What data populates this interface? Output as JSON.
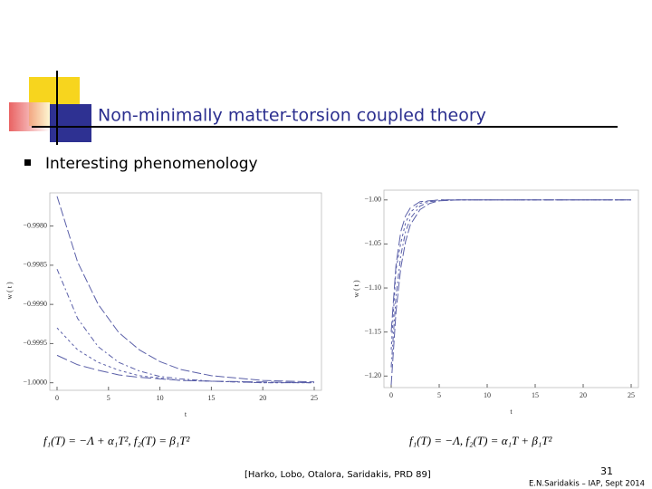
{
  "slide": {
    "title": "Non-minimally matter-torsion coupled theory",
    "bullet": "Interesting phenomenology",
    "formula_left": "f₁(T) = −Λ + α₁T²,   f₂(T) = β₁T²",
    "formula_right": "f₁(T) = −Λ,   f₂(T) = α₁T + β₁T²",
    "citation": "[Harko, Lobo, Otalora, Saridakis, PRD 89]",
    "page_number": "31",
    "footer": "E.N.Saridakis – IAP, Sept 2014"
  },
  "chart_data": [
    {
      "type": "line",
      "x_label": "t",
      "y_label": "w ( t )",
      "x": [
        0,
        2,
        4,
        6,
        8,
        10,
        12,
        15,
        20,
        25
      ],
      "series": [
        {
          "color": "#5a5fa8",
          "dash": "10 3",
          "values": [
            -0.99762,
            -0.99846,
            -0.999,
            -0.99936,
            -0.99958,
            -0.99973,
            -0.99983,
            -0.99991,
            -0.99997,
            -0.99999
          ]
        },
        {
          "color": "#5a5fa8",
          "dash": "6 3 2 3",
          "values": [
            -0.99855,
            -0.99918,
            -0.99954,
            -0.99974,
            -0.99985,
            -0.99992,
            -0.99995,
            -0.99998,
            -1.0,
            -1.0
          ]
        },
        {
          "color": "#5a5fa8",
          "dash": "3 3",
          "values": [
            -0.9993,
            -0.99958,
            -0.99974,
            -0.99984,
            -0.99991,
            -0.99994,
            -0.99997,
            -0.99998,
            -1.0,
            -1.0
          ]
        },
        {
          "color": "#5a5fa8",
          "dash": "12 4",
          "values": [
            -0.99965,
            -0.99977,
            -0.99984,
            -0.9999,
            -0.99993,
            -0.99995,
            -0.99997,
            -0.99998,
            -0.99999,
            -1.0
          ]
        }
      ],
      "xlim": [
        0,
        25
      ],
      "ylim": [
        -1.00005,
        -0.9976
      ],
      "xticks": [
        0,
        5,
        10,
        15,
        20,
        25
      ],
      "yticks": [
        {
          "value": -0.998,
          "label": "−0.9980"
        },
        {
          "value": -0.9985,
          "label": "−0.9985"
        },
        {
          "value": -0.999,
          "label": "−0.9990"
        },
        {
          "value": -0.9995,
          "label": "−0.9995"
        },
        {
          "value": -1.0,
          "label": "−1.0000"
        }
      ]
    },
    {
      "type": "line",
      "x_label": "t",
      "y_label": "w ( t )",
      "x": [
        0,
        0.5,
        1,
        1.5,
        2,
        3,
        4,
        5,
        7,
        10,
        15,
        20,
        25
      ],
      "series": [
        {
          "color": "#5a5fa8",
          "dash": "10 3",
          "values": [
            -1.21,
            -1.127,
            -1.077,
            -1.047,
            -1.028,
            -1.011,
            -1.004,
            -1.001,
            -1.0,
            -1.0,
            -1.0,
            -1.0,
            -1.0
          ]
        },
        {
          "color": "#5a5fa8",
          "dash": "6 3 2 3",
          "values": [
            -1.19,
            -1.109,
            -1.063,
            -1.036,
            -1.021,
            -1.007,
            -1.002,
            -1.001,
            -1.0,
            -1.0,
            -1.0,
            -1.0,
            -1.0
          ]
        },
        {
          "color": "#5a5fa8",
          "dash": "3 3",
          "values": [
            -1.17,
            -1.079,
            -1.049,
            -1.026,
            -1.014,
            -1.004,
            -1.001,
            -1.0,
            -1.0,
            -1.0,
            -1.0,
            -1.0,
            -1.0
          ]
        },
        {
          "color": "#5a5fa8",
          "dash": "12 4",
          "values": [
            -1.15,
            -1.074,
            -1.036,
            -1.018,
            -1.009,
            -1.002,
            -1.001,
            -1.0,
            -1.0,
            -1.0,
            -1.0,
            -1.0,
            -1.0
          ]
        }
      ],
      "xlim": [
        0,
        25
      ],
      "ylim": [
        -1.21,
        -0.992
      ],
      "xticks": [
        0,
        5,
        10,
        15,
        20,
        25
      ],
      "yticks": [
        {
          "value": -1.0,
          "label": "−1.00"
        },
        {
          "value": -1.05,
          "label": "−1.05"
        },
        {
          "value": -1.1,
          "label": "−1.10"
        },
        {
          "value": -1.15,
          "label": "−1.15"
        },
        {
          "value": -1.2,
          "label": "−1.20"
        }
      ]
    }
  ]
}
